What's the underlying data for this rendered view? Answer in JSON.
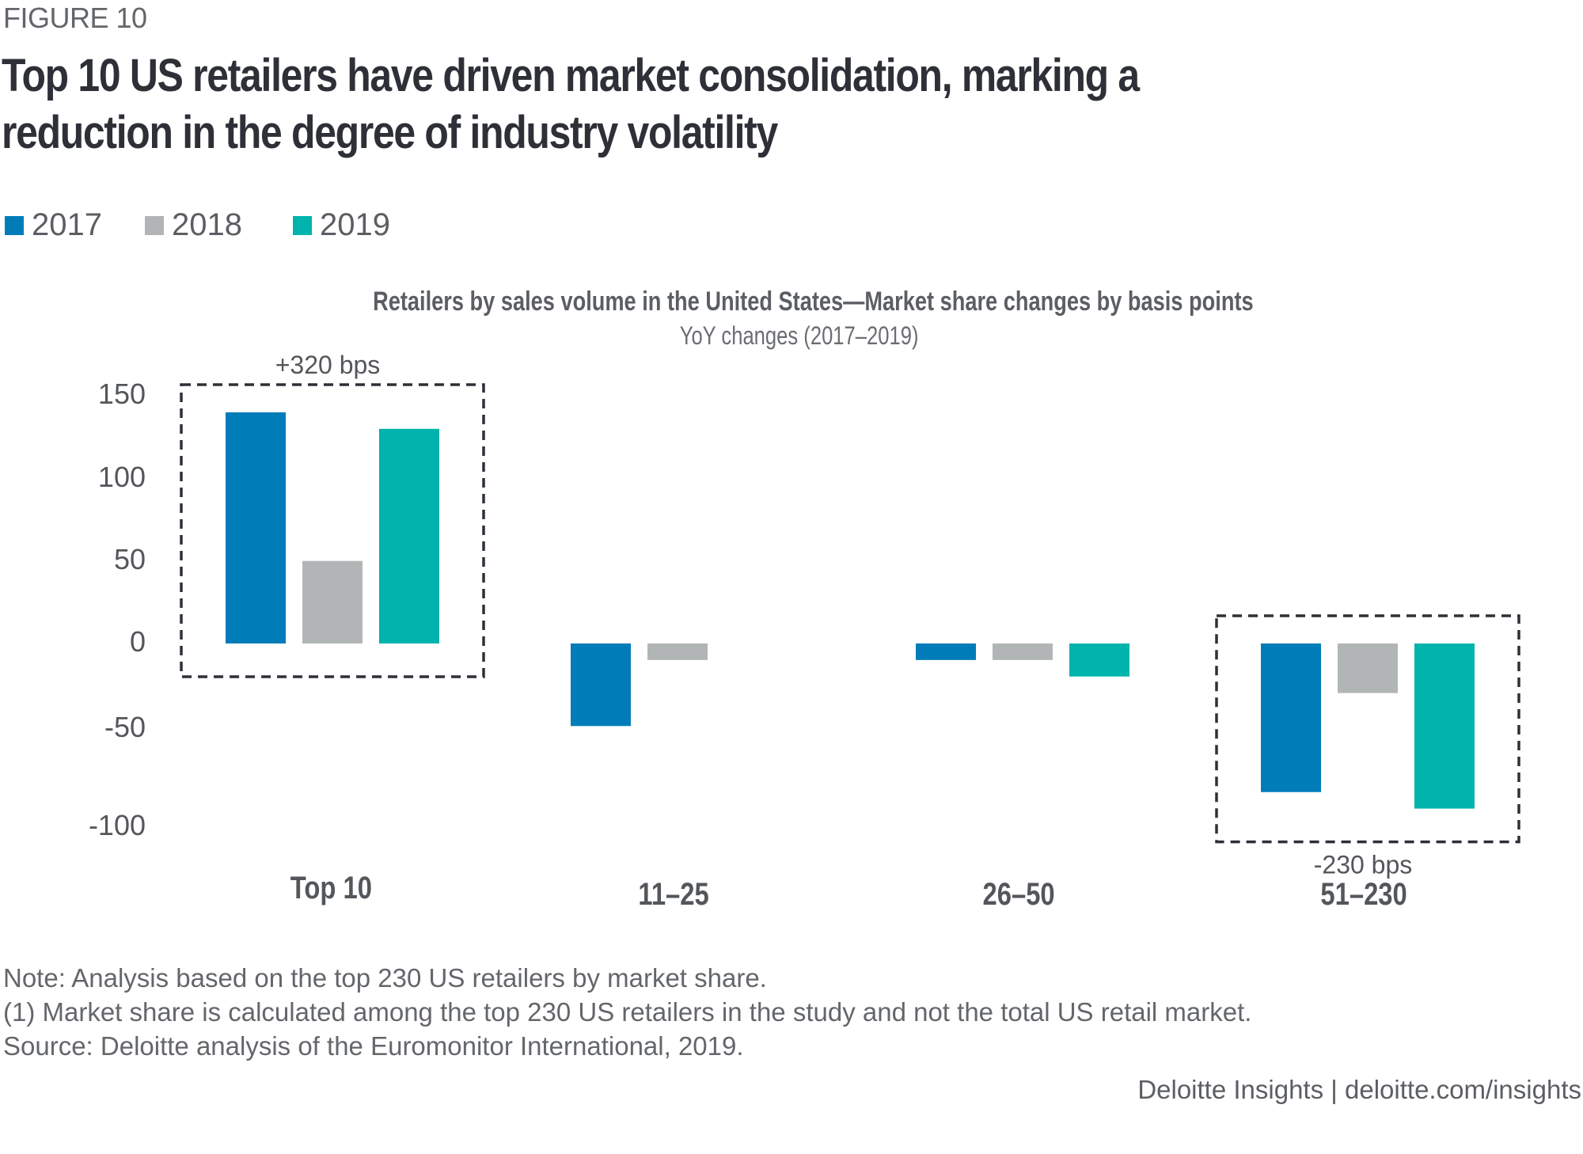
{
  "figure_label": "FIGURE 10",
  "title": "Top 10 US retailers have driven market consolidation, marking a reduction in the degree of industry volatility",
  "legend": [
    {
      "label": "2017",
      "color": "#007CB9"
    },
    {
      "label": "2018",
      "color": "#B2B5B6"
    },
    {
      "label": "2019",
      "color": "#00B3AC"
    }
  ],
  "chart_data": {
    "type": "bar",
    "title": "Retailers by sales volume in the United States—Market share changes by basis points",
    "subtitle": "YoY changes (2017–2019)",
    "xlabel": "",
    "ylabel": "",
    "categories": [
      "Top 10",
      "11–25",
      "26–50",
      "51–230"
    ],
    "series": [
      {
        "name": "2017",
        "color": "#007CB9",
        "values": [
          140,
          -50,
          -10,
          -90
        ]
      },
      {
        "name": "2018",
        "color": "#B2B5B6",
        "values": [
          50,
          -10,
          -10,
          -30
        ]
      },
      {
        "name": "2019",
        "color": "#00B3AC",
        "values": [
          130,
          null,
          -20,
          -100
        ]
      }
    ],
    "y_ticks": [
      150,
      100,
      50,
      0,
      -50,
      -100
    ],
    "ylim": [
      -110,
      160
    ],
    "grid": false,
    "legend_position": "top-left",
    "annotations": [
      {
        "category": "Top 10",
        "text": "+320 bps",
        "position": "above"
      },
      {
        "category": "51–230",
        "text": "-230 bps",
        "position": "below"
      }
    ]
  },
  "footnotes": [
    "Note: Analysis based on the top 230 US retailers by market share.",
    "(1) Market share is calculated among the top 230 US retailers in the study and not the total US retail market.",
    "Source: Deloitte analysis of the Euromonitor International, 2019."
  ],
  "brand": "Deloitte Insights | deloitte.com/insights"
}
